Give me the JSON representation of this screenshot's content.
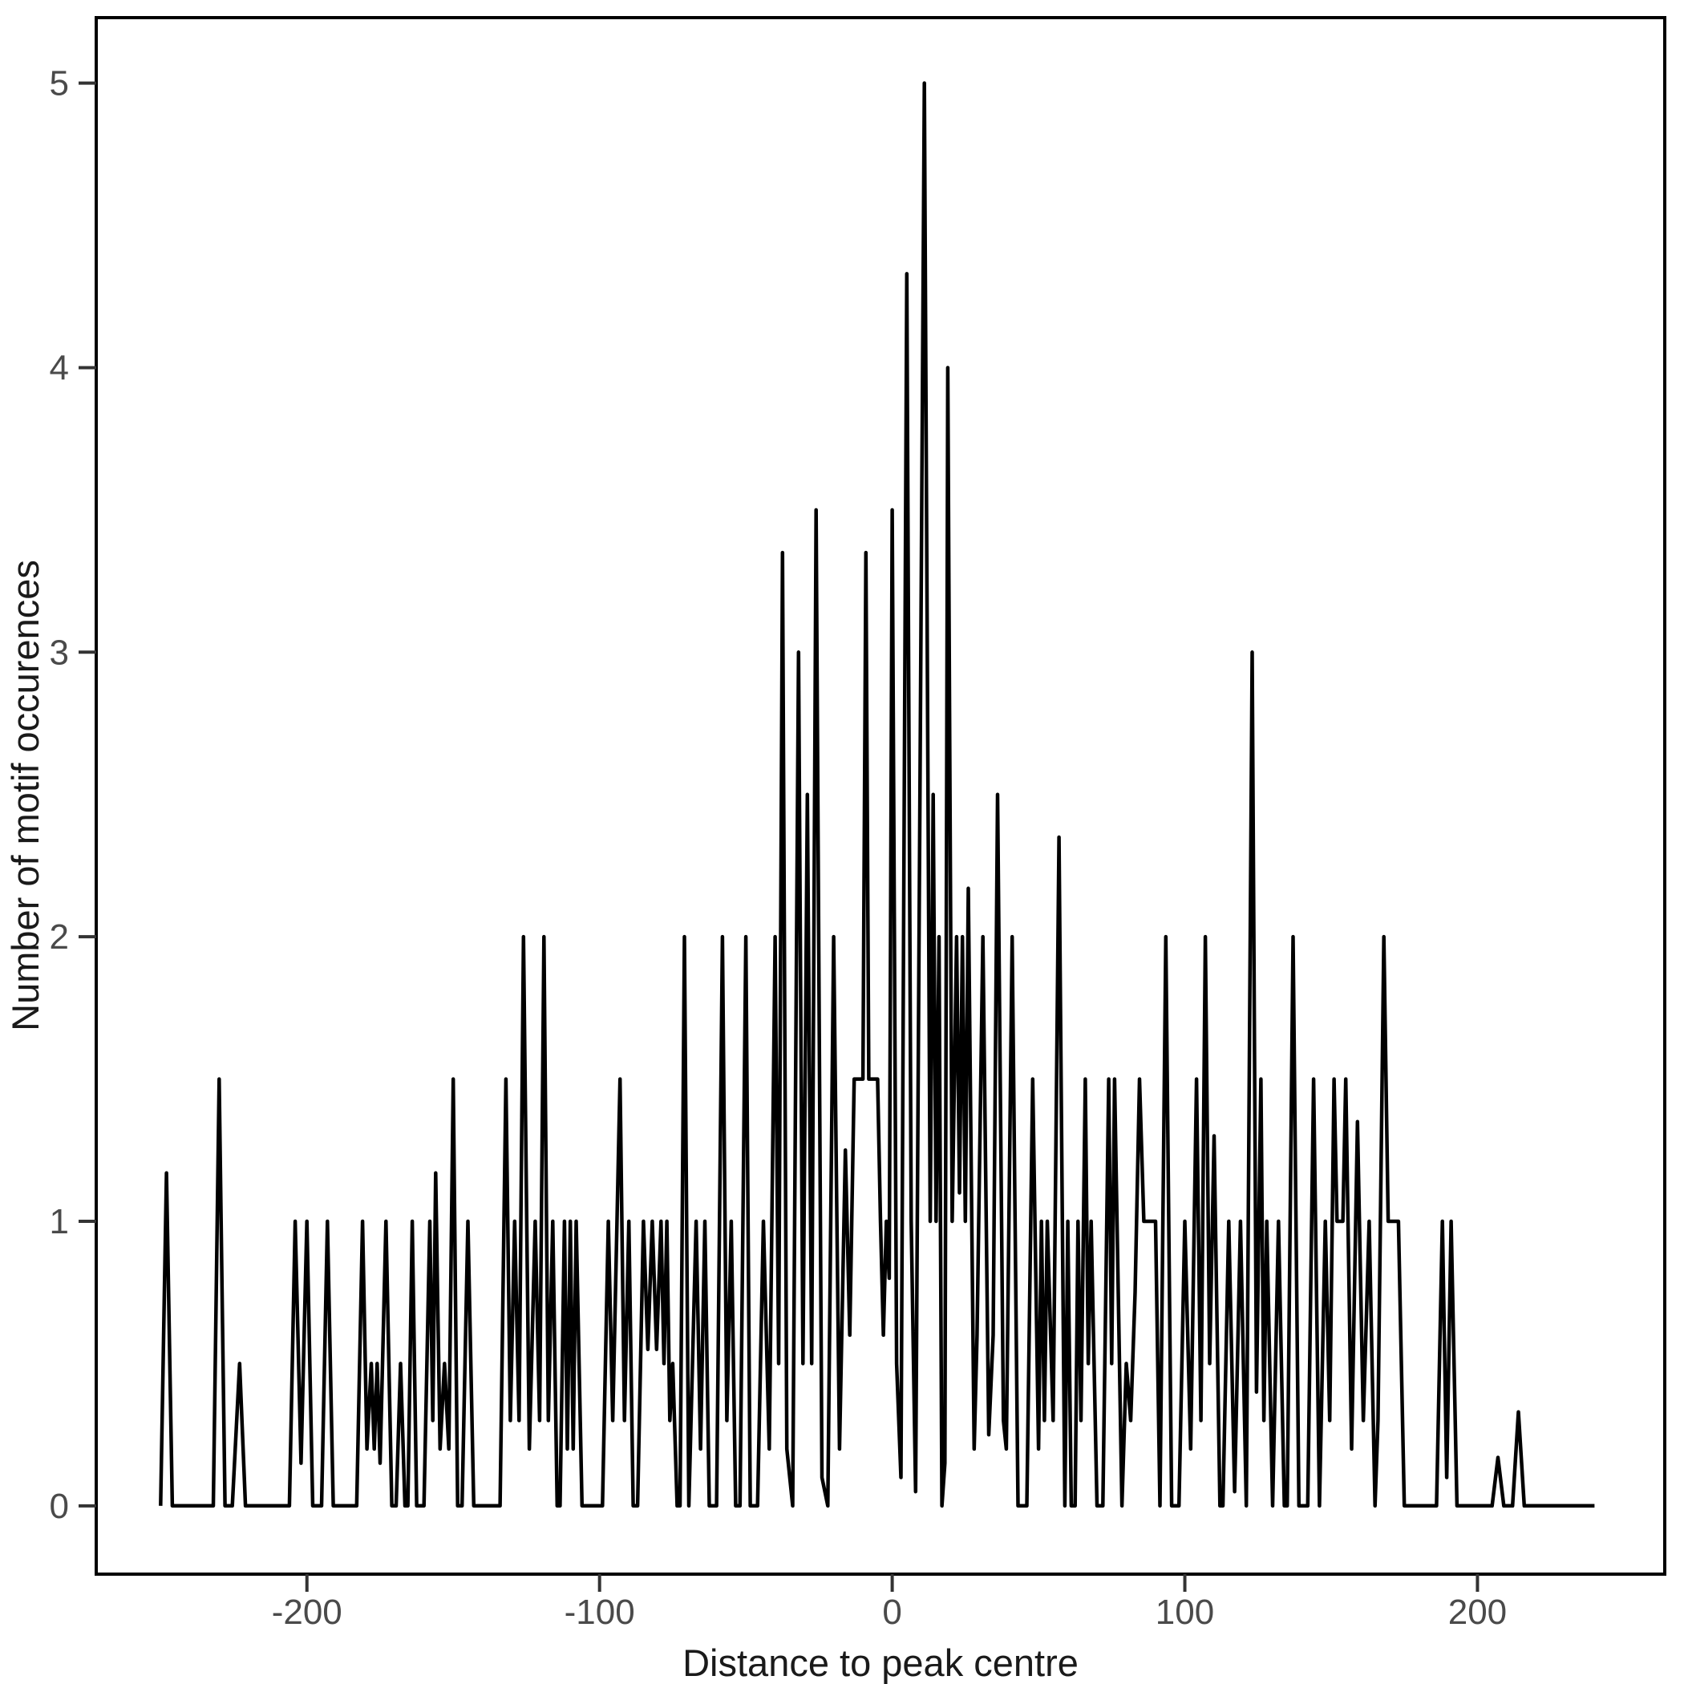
{
  "chart_data": {
    "type": "line",
    "title": "",
    "xlabel": "Distance to peak centre",
    "ylabel": "Number of motif occurences",
    "x_ticks": [
      -200,
      -100,
      0,
      100,
      200
    ],
    "y_ticks": [
      0,
      1,
      2,
      3,
      4,
      5
    ],
    "xlim": [
      -272,
      264
    ],
    "ylim": [
      -0.24,
      5.23
    ],
    "x_data_range": [
      -250,
      240
    ],
    "grid": false,
    "legend_position": "none",
    "line_color": "#000000",
    "axis_text_color": "#4a4a4a",
    "axis_title_color": "#1a1a1a",
    "background_color": "#ffffff",
    "points": [
      [
        -250,
        0
      ],
      [
        -248,
        1.17
      ],
      [
        -246,
        0
      ],
      [
        -232,
        0
      ],
      [
        -230,
        1.5
      ],
      [
        -228,
        0
      ],
      [
        -225.5,
        0
      ],
      [
        -223,
        0.5
      ],
      [
        -221,
        0
      ],
      [
        -206,
        0
      ],
      [
        -204,
        1
      ],
      [
        -202,
        0.15
      ],
      [
        -200,
        1
      ],
      [
        -198,
        0
      ],
      [
        -195,
        0
      ],
      [
        -193,
        1
      ],
      [
        -191,
        0
      ],
      [
        -183,
        0
      ],
      [
        -181,
        1
      ],
      [
        -179.5,
        0.2
      ],
      [
        -178,
        0.5
      ],
      [
        -177,
        0.2
      ],
      [
        -176,
        0.5
      ],
      [
        -175,
        0.15
      ],
      [
        -173,
        1
      ],
      [
        -171,
        0
      ],
      [
        -169.5,
        0
      ],
      [
        -168,
        0.5
      ],
      [
        -166.5,
        0
      ],
      [
        -165.5,
        0
      ],
      [
        -164,
        1
      ],
      [
        -162.5,
        0
      ],
      [
        -160,
        0
      ],
      [
        -158,
        1
      ],
      [
        -157,
        0.3
      ],
      [
        -156,
        1.17
      ],
      [
        -154.5,
        0.2
      ],
      [
        -153,
        0.5
      ],
      [
        -151.5,
        0.2
      ],
      [
        -150,
        1.5
      ],
      [
        -148.5,
        0
      ],
      [
        -147,
        0
      ],
      [
        -145,
        1
      ],
      [
        -143,
        0
      ],
      [
        -134,
        0
      ],
      [
        -132,
        1.5
      ],
      [
        -130.5,
        0.3
      ],
      [
        -129,
        1
      ],
      [
        -127.5,
        0.3
      ],
      [
        -126,
        2
      ],
      [
        -124,
        0.2
      ],
      [
        -122,
        1
      ],
      [
        -120.5,
        0.3
      ],
      [
        -119,
        2
      ],
      [
        -117.5,
        0.3
      ],
      [
        -116,
        1
      ],
      [
        -114.5,
        0
      ],
      [
        -113.5,
        0
      ],
      [
        -112,
        1
      ],
      [
        -111,
        0.2
      ],
      [
        -110,
        1
      ],
      [
        -109,
        0.2
      ],
      [
        -108,
        1
      ],
      [
        -106,
        0
      ],
      [
        -99,
        0
      ],
      [
        -97,
        1
      ],
      [
        -95.5,
        0.3
      ],
      [
        -93,
        1.5
      ],
      [
        -91.5,
        0.3
      ],
      [
        -90,
        1
      ],
      [
        -88.5,
        0
      ],
      [
        -87,
        0
      ],
      [
        -85,
        1
      ],
      [
        -83.5,
        0.55
      ],
      [
        -82,
        1
      ],
      [
        -80.5,
        0.55
      ],
      [
        -79,
        1
      ],
      [
        -78,
        0.5
      ],
      [
        -77,
        1
      ],
      [
        -76,
        0.3
      ],
      [
        -75,
        0.5
      ],
      [
        -73.5,
        0
      ],
      [
        -72.5,
        0
      ],
      [
        -71,
        2
      ],
      [
        -69.5,
        0
      ],
      [
        -67,
        1
      ],
      [
        -65.5,
        0.2
      ],
      [
        -64,
        1
      ],
      [
        -62.5,
        0
      ],
      [
        -60,
        0
      ],
      [
        -58,
        2
      ],
      [
        -56.5,
        0.3
      ],
      [
        -55,
        1
      ],
      [
        -53.5,
        0
      ],
      [
        -52,
        0
      ],
      [
        -50,
        2
      ],
      [
        -48.5,
        0
      ],
      [
        -46,
        0
      ],
      [
        -44,
        1
      ],
      [
        -42,
        0.2
      ],
      [
        -40,
        2
      ],
      [
        -38.8,
        0.5
      ],
      [
        -37.5,
        3.35
      ],
      [
        -36,
        0.2
      ],
      [
        -34,
        0
      ],
      [
        -32,
        3
      ],
      [
        -30.5,
        0.5
      ],
      [
        -29,
        2.5
      ],
      [
        -27.5,
        0.5
      ],
      [
        -26,
        3.5
      ],
      [
        -24,
        0.1
      ],
      [
        -22,
        0
      ],
      [
        -20,
        2
      ],
      [
        -18,
        0.2
      ],
      [
        -16,
        1.25
      ],
      [
        -14.5,
        0.6
      ],
      [
        -13,
        1.5
      ],
      [
        -10,
        1.5
      ],
      [
        -9,
        3.35
      ],
      [
        -8,
        1.5
      ],
      [
        -5,
        1.5
      ],
      [
        -4,
        1
      ],
      [
        -3,
        0.6
      ],
      [
        -2,
        1
      ],
      [
        -1,
        0.8
      ],
      [
        0,
        3.5
      ],
      [
        1.5,
        0.5
      ],
      [
        3,
        0.1
      ],
      [
        5,
        4.33
      ],
      [
        6.5,
        1
      ],
      [
        8,
        0.05
      ],
      [
        11,
        5
      ],
      [
        13,
        1
      ],
      [
        14,
        2.5
      ],
      [
        15,
        1
      ],
      [
        16,
        2
      ],
      [
        17,
        0
      ],
      [
        18,
        0.15
      ],
      [
        19,
        4
      ],
      [
        20.5,
        1
      ],
      [
        22,
        2
      ],
      [
        23,
        1.1
      ],
      [
        24,
        2
      ],
      [
        25,
        1
      ],
      [
        26,
        2.17
      ],
      [
        28,
        0.2
      ],
      [
        29,
        0.6
      ],
      [
        31,
        2
      ],
      [
        33,
        0.25
      ],
      [
        34.5,
        0.6
      ],
      [
        36,
        2.5
      ],
      [
        38,
        0.3
      ],
      [
        39,
        0.2
      ],
      [
        41,
        2
      ],
      [
        43,
        0
      ],
      [
        46,
        0
      ],
      [
        48,
        1.5
      ],
      [
        50,
        0.2
      ],
      [
        51,
        1
      ],
      [
        52,
        0.3
      ],
      [
        53,
        1
      ],
      [
        55,
        0.3
      ],
      [
        57,
        2.35
      ],
      [
        59,
        0
      ],
      [
        60,
        1
      ],
      [
        61.2,
        0
      ],
      [
        62.5,
        0
      ],
      [
        63.5,
        1
      ],
      [
        64.5,
        0.3
      ],
      [
        66,
        1.5
      ],
      [
        67,
        0.5
      ],
      [
        68,
        1
      ],
      [
        70,
        0
      ],
      [
        72,
        0
      ],
      [
        74,
        1.5
      ],
      [
        75,
        0.5
      ],
      [
        76,
        1.5
      ],
      [
        78.5,
        0
      ],
      [
        80,
        0.5
      ],
      [
        81.5,
        0.3
      ],
      [
        83,
        0.75
      ],
      [
        84.5,
        1.5
      ],
      [
        86,
        1
      ],
      [
        90,
        1
      ],
      [
        91.5,
        0
      ],
      [
        93.5,
        2
      ],
      [
        95.5,
        0
      ],
      [
        98,
        0
      ],
      [
        100,
        1
      ],
      [
        102,
        0.2
      ],
      [
        104,
        1.5
      ],
      [
        105.5,
        0.3
      ],
      [
        107,
        2
      ],
      [
        108.5,
        0.5
      ],
      [
        110,
        1.3
      ],
      [
        112,
        0
      ],
      [
        113,
        0
      ],
      [
        115,
        1
      ],
      [
        117,
        0.05
      ],
      [
        119,
        1
      ],
      [
        121,
        0
      ],
      [
        123,
        3
      ],
      [
        124.5,
        0.4
      ],
      [
        126,
        1.5
      ],
      [
        127,
        0.3
      ],
      [
        128,
        1
      ],
      [
        130,
        0
      ],
      [
        132,
        1
      ],
      [
        134,
        0
      ],
      [
        135,
        0
      ],
      [
        137,
        2
      ],
      [
        139,
        0
      ],
      [
        142,
        0
      ],
      [
        144,
        1.5
      ],
      [
        146,
        0
      ],
      [
        148,
        1
      ],
      [
        149.5,
        0.3
      ],
      [
        151,
        1.5
      ],
      [
        152,
        1
      ],
      [
        154,
        1
      ],
      [
        155,
        1.5
      ],
      [
        157,
        0.2
      ],
      [
        159,
        1.35
      ],
      [
        161,
        0.3
      ],
      [
        163,
        1
      ],
      [
        165,
        0
      ],
      [
        166,
        0.3
      ],
      [
        168,
        2
      ],
      [
        169.5,
        1
      ],
      [
        173,
        1
      ],
      [
        175,
        0
      ],
      [
        186,
        0
      ],
      [
        188,
        1
      ],
      [
        189.5,
        0.1
      ],
      [
        191,
        1
      ],
      [
        193,
        0
      ],
      [
        205,
        0
      ],
      [
        207,
        0.17
      ],
      [
        209,
        0
      ],
      [
        212,
        0
      ],
      [
        214,
        0.33
      ],
      [
        216,
        0
      ],
      [
        240,
        0
      ]
    ]
  }
}
